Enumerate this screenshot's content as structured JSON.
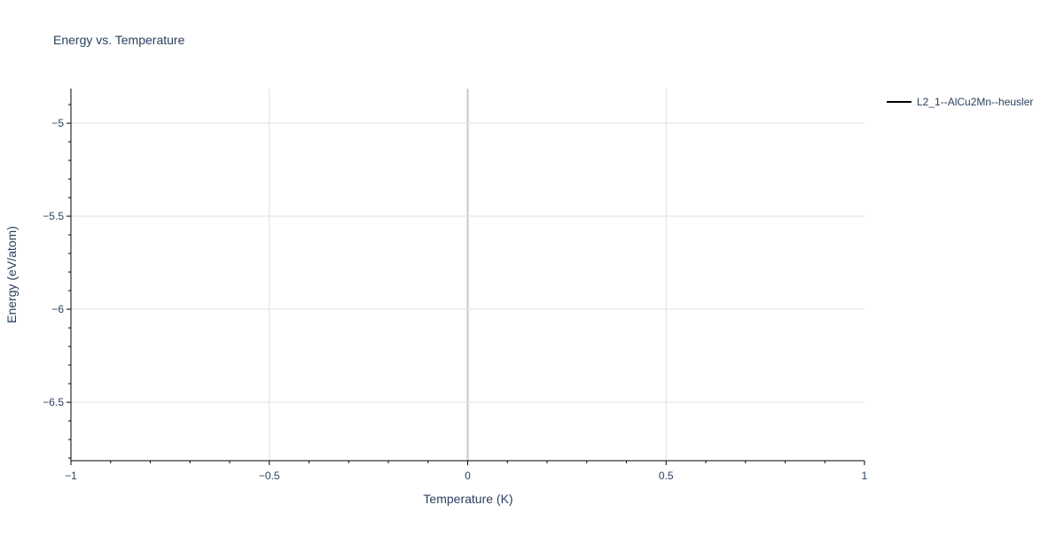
{
  "chart_data": {
    "type": "line",
    "title": "Energy vs. Temperature",
    "xlabel": "Temperature (K)",
    "ylabel": "Energy (eV/atom)",
    "xlim": [
      -1,
      1
    ],
    "ylim": [
      -6.814,
      -4.814
    ],
    "xticks": [
      -1,
      -0.5,
      0,
      0.5,
      1
    ],
    "xtick_labels": [
      "−1",
      "−0.5",
      "0",
      "0.5",
      "1"
    ],
    "yticks": [
      -5,
      -5.5,
      -6,
      -6.5
    ],
    "ytick_labels": [
      "−5",
      "−5.5",
      "−6",
      "−6.5"
    ],
    "minor_tick_step": 0.1,
    "grid": true,
    "legend_position": "top-right",
    "series": [
      {
        "name": "L2_1--AlCu2Mn--heusler",
        "color": "#000000",
        "x": [],
        "y": []
      }
    ]
  }
}
